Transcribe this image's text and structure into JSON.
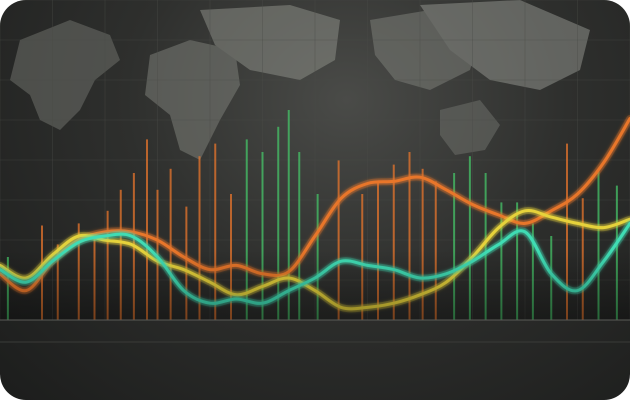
{
  "colors": {
    "orange": "#e8762c",
    "amber": "#f0b232",
    "yellow": "#e6d23a",
    "green": "#46c468",
    "teal": "#3fdcb4",
    "grid": "#4b4c49",
    "map": "#7b7d77"
  },
  "chart_data": {
    "type": "line",
    "title": "",
    "xlabel": "",
    "ylabel": "",
    "x": [
      0,
      1,
      2,
      3,
      4,
      5,
      6,
      7,
      8,
      9,
      10,
      11,
      12,
      13,
      14,
      15,
      16,
      17,
      18,
      19,
      20,
      21,
      22,
      23,
      24
    ],
    "xlim": [
      0,
      24
    ],
    "ylim": [
      0,
      100
    ],
    "grid": true,
    "legend": "none",
    "series": [
      {
        "color": "#e8762c",
        "values": [
          22,
          14,
          28,
          38,
          42,
          42,
          38,
          30,
          24,
          26,
          22,
          23,
          40,
          58,
          65,
          66,
          68,
          62,
          55,
          50,
          46,
          52,
          60,
          75,
          96
        ]
      },
      {
        "color": "#e6d23a",
        "values": [
          26,
          20,
          31,
          40,
          38,
          36,
          28,
          24,
          18,
          12,
          16,
          20,
          14,
          6,
          6,
          8,
          12,
          18,
          30,
          44,
          52,
          49,
          46,
          44,
          48
        ]
      },
      {
        "color": "#3fdcb4",
        "values": [
          24,
          18,
          28,
          37,
          40,
          40,
          30,
          14,
          8,
          10,
          8,
          14,
          20,
          28,
          26,
          24,
          20,
          22,
          28,
          36,
          42,
          22,
          14,
          28,
          46
        ]
      }
    ],
    "bars": [
      {
        "x": 0.3,
        "value": 30,
        "color": "#46c468"
      },
      {
        "x": 1.6,
        "value": 45,
        "color": "#e8762c"
      },
      {
        "x": 2.2,
        "value": 36,
        "color": "#e8762c"
      },
      {
        "x": 3.0,
        "value": 46,
        "color": "#e8762c"
      },
      {
        "x": 3.6,
        "value": 40,
        "color": "#e8762c"
      },
      {
        "x": 4.1,
        "value": 52,
        "color": "#e8762c"
      },
      {
        "x": 4.6,
        "value": 62,
        "color": "#e8762c"
      },
      {
        "x": 5.1,
        "value": 70,
        "color": "#e8762c"
      },
      {
        "x": 5.6,
        "value": 86,
        "color": "#e8762c"
      },
      {
        "x": 6.0,
        "value": 62,
        "color": "#e8762c"
      },
      {
        "x": 6.5,
        "value": 72,
        "color": "#e8762c"
      },
      {
        "x": 7.1,
        "value": 54,
        "color": "#e8762c"
      },
      {
        "x": 7.6,
        "value": 78,
        "color": "#e8762c"
      },
      {
        "x": 8.2,
        "value": 84,
        "color": "#e8762c"
      },
      {
        "x": 8.8,
        "value": 60,
        "color": "#e8762c"
      },
      {
        "x": 9.4,
        "value": 86,
        "color": "#46c468"
      },
      {
        "x": 10.0,
        "value": 80,
        "color": "#46c468"
      },
      {
        "x": 10.6,
        "value": 92,
        "color": "#46c468"
      },
      {
        "x": 11.0,
        "value": 100,
        "color": "#46c468"
      },
      {
        "x": 11.4,
        "value": 80,
        "color": "#46c468"
      },
      {
        "x": 12.1,
        "value": 60,
        "color": "#46c468"
      },
      {
        "x": 12.9,
        "value": 76,
        "color": "#e8762c"
      },
      {
        "x": 13.8,
        "value": 60,
        "color": "#e8762c"
      },
      {
        "x": 14.4,
        "value": 66,
        "color": "#e8762c"
      },
      {
        "x": 15.0,
        "value": 74,
        "color": "#e8762c"
      },
      {
        "x": 15.6,
        "value": 80,
        "color": "#e8762c"
      },
      {
        "x": 16.1,
        "value": 72,
        "color": "#e8762c"
      },
      {
        "x": 16.6,
        "value": 66,
        "color": "#e8762c"
      },
      {
        "x": 17.3,
        "value": 70,
        "color": "#46c468"
      },
      {
        "x": 17.9,
        "value": 78,
        "color": "#46c468"
      },
      {
        "x": 18.5,
        "value": 70,
        "color": "#46c468"
      },
      {
        "x": 19.1,
        "value": 56,
        "color": "#46c468"
      },
      {
        "x": 19.7,
        "value": 56,
        "color": "#46c468"
      },
      {
        "x": 20.3,
        "value": 46,
        "color": "#46c468"
      },
      {
        "x": 21.0,
        "value": 40,
        "color": "#46c468"
      },
      {
        "x": 21.6,
        "value": 84,
        "color": "#e8762c"
      },
      {
        "x": 22.2,
        "value": 58,
        "color": "#e8762c"
      },
      {
        "x": 22.8,
        "value": 72,
        "color": "#46c468"
      },
      {
        "x": 23.5,
        "value": 64,
        "color": "#46c468"
      }
    ],
    "x_tick_labels": [
      "",
      "",
      "",
      "",
      "",
      "",
      "",
      "",
      "",
      "",
      "",
      ""
    ],
    "secondary_tick_labels": [
      "",
      "",
      "",
      "",
      "",
      "",
      "",
      "",
      "",
      ""
    ]
  }
}
